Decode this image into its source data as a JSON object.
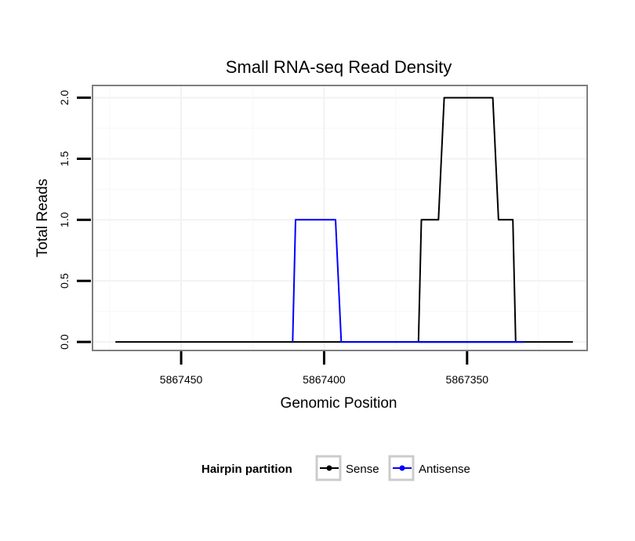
{
  "chart_data": {
    "type": "line",
    "title": "Small RNA-seq Read Density",
    "xlabel": "Genomic Position",
    "ylabel": "Total Reads",
    "xlim": [
      5867481,
      5867308
    ],
    "x_reversed": true,
    "ylim": [
      -0.07,
      2.1
    ],
    "x_ticks": [
      5867450,
      5867400,
      5867350
    ],
    "x_tick_labels": [
      "5867450",
      "5867400",
      "5867350"
    ],
    "y_ticks": [
      0.0,
      0.5,
      1.0,
      1.5,
      2.0
    ],
    "y_tick_labels": [
      "0.0",
      "0.5",
      "1.0",
      "1.5",
      "2.0"
    ],
    "grid": true,
    "legend": {
      "title": "Hairpin partition",
      "position": "bottom"
    },
    "series": [
      {
        "name": "Sense",
        "color": "#000000",
        "x": [
          5867473,
          5867330,
          5867330,
          5867325,
          5867313
        ],
        "y": [
          0,
          0,
          0,
          0,
          0
        ]
      },
      {
        "name": "Sense",
        "color": "#000000",
        "x": [
          5867330,
          5867367,
          5867366,
          5867360,
          5867358,
          5867341,
          5867339,
          5867334,
          5867333
        ],
        "y": [
          0,
          0,
          1,
          1,
          2,
          2,
          1,
          1,
          0
        ]
      },
      {
        "name": "Antisense",
        "color": "#0000ff",
        "x": [
          5867411,
          5867410,
          5867396,
          5867394,
          5867330
        ],
        "y": [
          0,
          1,
          1,
          0,
          0
        ]
      }
    ],
    "legend_entries": [
      {
        "label": "Sense",
        "color": "#000000"
      },
      {
        "label": "Antisense",
        "color": "#0000ff"
      }
    ]
  }
}
